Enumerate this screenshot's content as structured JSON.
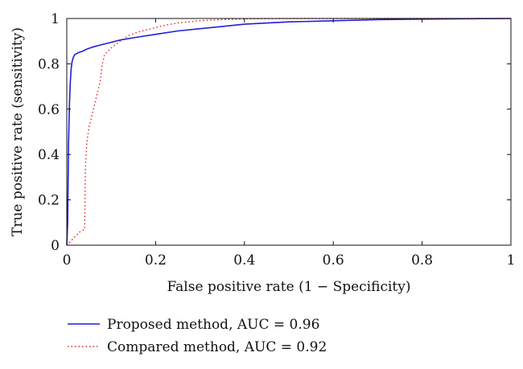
{
  "chart_data": {
    "type": "line",
    "title": "",
    "xlabel": "False positive rate (1 − Specificity)",
    "ylabel": "True positive rate (sensitivity)",
    "xlim": [
      0,
      1
    ],
    "ylim": [
      0,
      1
    ],
    "xticks": [
      0,
      0.2,
      0.4,
      0.6,
      0.8,
      1
    ],
    "xtick_labels": [
      "0",
      "0.2",
      "0.4",
      "0.6",
      "0.8",
      "1"
    ],
    "yticks": [
      0,
      0.2,
      0.4,
      0.6,
      0.8,
      1
    ],
    "ytick_labels": [
      "0",
      "0.2",
      "0.4",
      "0.6",
      "0.8",
      "1"
    ],
    "grid": false,
    "legend_position": "bottom",
    "series": [
      {
        "name": "Proposed method, AUC = 0.96",
        "color": "#1f1fd8",
        "style": "solid",
        "x": [
          0,
          0.002,
          0.004,
          0.006,
          0.008,
          0.01,
          0.012,
          0.015,
          0.018,
          0.022,
          0.027,
          0.035,
          0.045,
          0.06,
          0.08,
          0.1,
          0.12,
          0.15,
          0.2,
          0.25,
          0.3,
          0.35,
          0.4,
          0.5,
          0.6,
          0.7,
          0.8,
          0.9,
          1.0
        ],
        "y": [
          0,
          0.1,
          0.45,
          0.62,
          0.72,
          0.78,
          0.81,
          0.83,
          0.84,
          0.845,
          0.85,
          0.855,
          0.865,
          0.875,
          0.885,
          0.895,
          0.905,
          0.915,
          0.93,
          0.945,
          0.955,
          0.965,
          0.975,
          0.985,
          0.99,
          0.995,
          0.997,
          0.999,
          1.0
        ]
      },
      {
        "name": "Compared method, AUC = 0.92",
        "color": "#e02020",
        "style": "dotted",
        "x": [
          0,
          0.01,
          0.02,
          0.03,
          0.04,
          0.042,
          0.045,
          0.05,
          0.055,
          0.06,
          0.065,
          0.07,
          0.075,
          0.08,
          0.085,
          0.09,
          0.1,
          0.12,
          0.14,
          0.16,
          0.18,
          0.2,
          0.22,
          0.25,
          0.3,
          0.35,
          0.4,
          0.5,
          0.6,
          0.7,
          0.8,
          0.9,
          1.0
        ],
        "y": [
          0,
          0.02,
          0.04,
          0.06,
          0.07,
          0.35,
          0.45,
          0.52,
          0.56,
          0.6,
          0.64,
          0.68,
          0.72,
          0.8,
          0.84,
          0.85,
          0.87,
          0.9,
          0.925,
          0.94,
          0.95,
          0.96,
          0.97,
          0.98,
          0.99,
          0.995,
          0.998,
          1.0,
          1.0,
          1.0,
          1.0,
          1.0,
          1.0
        ]
      }
    ]
  }
}
